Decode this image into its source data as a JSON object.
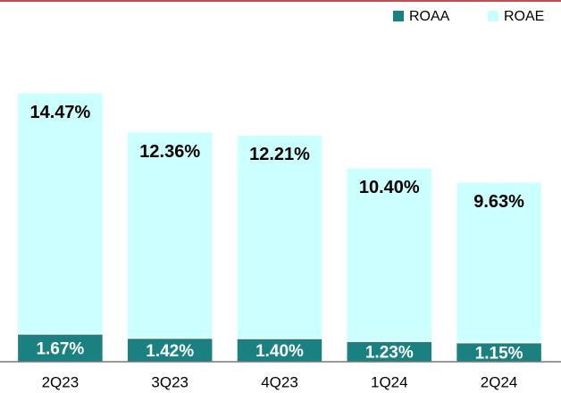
{
  "chart_data": {
    "type": "stacked_bar",
    "categories": [
      "2Q23",
      "3Q23",
      "4Q23",
      "1Q24",
      "2Q24"
    ],
    "series": [
      {
        "name": "ROAA",
        "color": "#1a8080",
        "values": [
          1.67,
          1.42,
          1.4,
          1.23,
          1.15
        ],
        "value_labels": [
          "1.67%",
          "1.42%",
          "1.40%",
          "1.23%",
          "1.15%"
        ]
      },
      {
        "name": "ROAE",
        "color": "#ccffff",
        "values": [
          14.47,
          12.36,
          12.21,
          10.4,
          9.63
        ],
        "value_labels": [
          "14.47%",
          "12.36%",
          "12.21%",
          "10.40%",
          "9.63%"
        ]
      }
    ],
    "ylim": [
      0,
      18
    ]
  }
}
